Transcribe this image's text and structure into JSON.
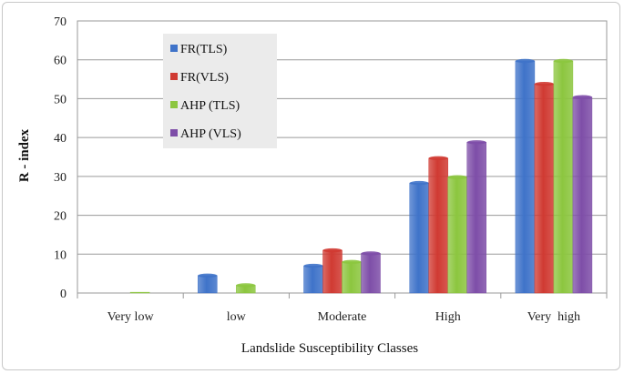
{
  "chart_data": {
    "type": "bar",
    "title": "",
    "xlabel": "Landslide Susceptibility Classes",
    "ylabel": "R - index",
    "ylim": [
      0,
      70
    ],
    "yticks": [
      0,
      10,
      20,
      30,
      40,
      50,
      60,
      70
    ],
    "grid": true,
    "legend_position": "top-left",
    "categories": [
      "Very low",
      "low",
      "Moderate",
      "High",
      "Very  high"
    ],
    "series": [
      {
        "name": "FR(TLS)",
        "color": "#3f73c9",
        "values": [
          0,
          4.5,
          7,
          28.3,
          59.7
        ]
      },
      {
        "name": "FR(VLS)",
        "color": "#d03a32",
        "values": [
          0,
          0,
          11,
          34.7,
          53.8
        ]
      },
      {
        "name": "AHP (TLS)",
        "color": "#8cc63f",
        "values": [
          0.2,
          2,
          8,
          29.8,
          59.7
        ]
      },
      {
        "name": "AHP (VLS)",
        "color": "#7e4ea8",
        "values": [
          0,
          0,
          10.2,
          38.8,
          50.4
        ]
      }
    ]
  }
}
